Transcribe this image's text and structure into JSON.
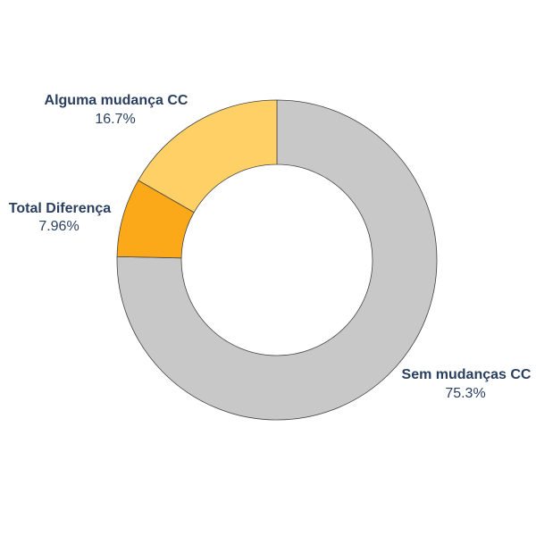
{
  "chart_data": {
    "type": "pie",
    "hole": true,
    "title": "",
    "slices": [
      {
        "name": "Sem mudanças CC",
        "value": 75.3,
        "label": "75.3%",
        "color": "#c8c8c8"
      },
      {
        "name": "Total Diferença",
        "value": 7.96,
        "label": "7.96%",
        "color": "#fba919"
      },
      {
        "name": "Alguma mudança CC",
        "value": 16.7,
        "label": "16.7%",
        "color": "#ffd066"
      }
    ]
  }
}
